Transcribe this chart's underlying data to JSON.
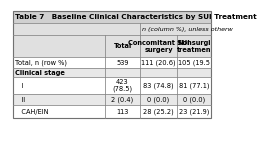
{
  "title": "Table 7   Baseline Clinical Characteristics by SUI Treatment",
  "header_note": "n (column %), unless otherw",
  "col_headers_line1": [
    "",
    "",
    "Concomitant SUI",
    "Nonsurgi"
  ],
  "col_headers_line2": [
    "",
    "Total",
    "surgery",
    "treatmen"
  ],
  "rows": [
    {
      "label": "Total, n (row %)",
      "bold_label": false,
      "total": "539",
      "concomitant": "111 (20.6)",
      "nonsurg": "105 (19.5",
      "bg": "#ffffff"
    },
    {
      "label": "Clinical stage",
      "bold_label": true,
      "total": "",
      "concomitant": "",
      "nonsurg": "",
      "bg": "#e8e8e8"
    },
    {
      "label": "   I",
      "bold_label": false,
      "total": "423\n(78.5)",
      "concomitant": "83 (74.8)",
      "nonsurg": "81 (77.1)",
      "bg": "#ffffff"
    },
    {
      "label": "   II",
      "bold_label": false,
      "total": "2 (0.4)",
      "concomitant": "0 (0.0)",
      "nonsurg": "0 (0.0)",
      "bg": "#e8e8e8"
    },
    {
      "label": "   CAH/EIN",
      "bold_label": false,
      "total": "113",
      "concomitant": "28 (25.2)",
      "nonsurg": "23 (21.9)",
      "bg": "#ffffff"
    }
  ],
  "bg_title": "#d0d0d0",
  "bg_header": "#c8c8c8",
  "bg_note": "#e0e0e0",
  "bg_white": "#ffffff",
  "bg_light": "#e8e8e8",
  "border_color": "#888888",
  "title_fontsize": 5.2,
  "cell_fontsize": 4.8,
  "header_fontsize": 4.8
}
